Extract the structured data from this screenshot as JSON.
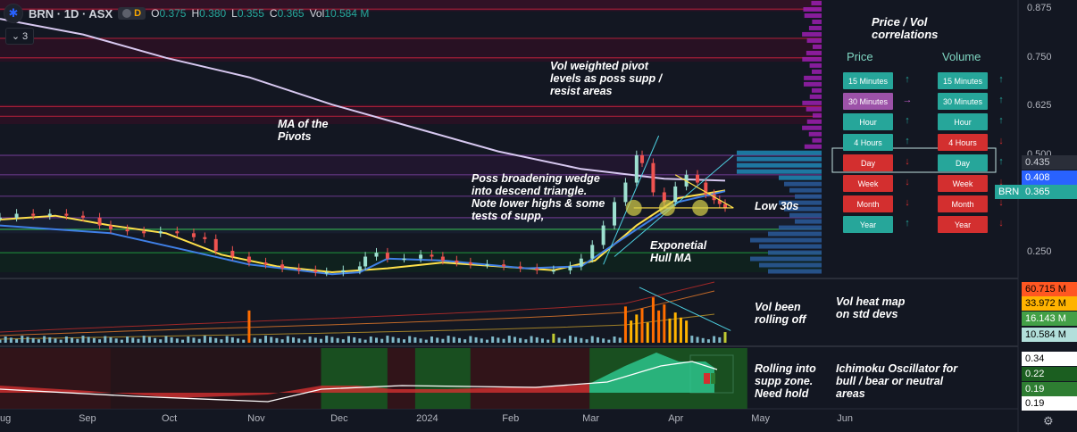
{
  "header": {
    "symbol": "BRN · 1D · ASX",
    "badge": "D",
    "open_key": "O",
    "open": "0.375",
    "high_key": "H",
    "high": "0.380",
    "low_key": "L",
    "low": "0.355",
    "close_key": "C",
    "close": "0.365",
    "vol_key": "Vol",
    "vol": "10.584 M",
    "collapse_count": "3"
  },
  "correlations": {
    "title_line1": "Price / Vol",
    "title_line2": "correlations",
    "price_header": "Price",
    "volume_header": "Volume",
    "rows": [
      {
        "label": "15 Minutes",
        "price_color": "#26a69a",
        "price_arrow": "↑",
        "price_arrow_color": "#26a69a",
        "vol_color": "#26a69a",
        "vol_arrow": "↑",
        "vol_arrow_color": "#26a69a"
      },
      {
        "label": "30 Minutes",
        "price_color": "#9c52a8",
        "price_arrow": "→",
        "price_arrow_color": "#c25cc9",
        "vol_color": "#26a69a",
        "vol_arrow": "↑",
        "vol_arrow_color": "#26a69a"
      },
      {
        "label": "Hour",
        "price_color": "#26a69a",
        "price_arrow": "↑",
        "price_arrow_color": "#26a69a",
        "vol_color": "#26a69a",
        "vol_arrow": "↑",
        "vol_arrow_color": "#26a69a"
      },
      {
        "label": "4 Hours",
        "price_color": "#26a69a",
        "price_arrow": "↑",
        "price_arrow_color": "#26a69a",
        "vol_color": "#d32f2f",
        "vol_arrow": "↓",
        "vol_arrow_color": "#d32f2f"
      },
      {
        "label": "Day",
        "price_color": "#d32f2f",
        "price_arrow": "↓",
        "price_arrow_color": "#d32f2f",
        "vol_color": "#26a69a",
        "vol_arrow": "↑",
        "vol_arrow_color": "#26a69a"
      },
      {
        "label": "Week",
        "price_color": "#d32f2f",
        "price_arrow": "↓",
        "price_arrow_color": "#d32f2f",
        "vol_color": "#d32f2f",
        "vol_arrow": "↓",
        "vol_arrow_color": "#d32f2f"
      },
      {
        "label": "Month",
        "price_color": "#d32f2f",
        "price_arrow": "↓",
        "price_arrow_color": "#d32f2f",
        "vol_color": "#d32f2f",
        "vol_arrow": "↓",
        "vol_arrow_color": "#d32f2f"
      },
      {
        "label": "Year",
        "price_color": "#26a69a",
        "price_arrow": "↑",
        "price_arrow_color": "#26a69a",
        "vol_color": "#d32f2f",
        "vol_arrow": "↓",
        "vol_arrow_color": "#d32f2f"
      }
    ]
  },
  "annotations": {
    "vol_weighted": "Vol weighted pivot levels as poss supp / resist areas",
    "ma_pivots": "MA of the Pivots",
    "broadening": "Poss broadening wedge into descend triangle. Note lower highs & some tests of supp,",
    "low30s": "Low 30s",
    "hull": "Exponetial Hull MA",
    "vol_rolling": "Vol been rolling off",
    "vol_heat": "Vol heat map on std devs",
    "rolling_supp": "Rolling into supp zone. Need hold",
    "ichimoku": "Ichimoku Oscillator for bull / bear or neutral areas"
  },
  "price_axis": {
    "ticks": [
      "0.875",
      "0.750",
      "0.625",
      "0.500",
      "0.250"
    ],
    "labels": [
      {
        "text": "0.435",
        "bg": "#2a2e39",
        "fg": "#d1d4dc"
      },
      {
        "text": "0.408",
        "bg": "#2962ff",
        "fg": "#ffffff"
      },
      {
        "text": "0.365",
        "bg": "#26a69a",
        "fg": "#ffffff"
      }
    ],
    "symbol_tag": "BRN"
  },
  "volume_axis": {
    "labels": [
      {
        "text": "60.715 M",
        "bg": "#ff5722",
        "fg": "#000000"
      },
      {
        "text": "33.972 M",
        "bg": "#ffb300",
        "fg": "#000000"
      },
      {
        "text": "16.143 M",
        "bg": "#43a047",
        "fg": "#ffffff"
      },
      {
        "text": "10.584 M",
        "bg": "#b2dfdb",
        "fg": "#000000"
      }
    ]
  },
  "oscillator_axis": {
    "labels": [
      {
        "text": "0.34",
        "bg": "#ffffff",
        "fg": "#000000"
      },
      {
        "text": "0.22",
        "bg": "#1b5e20",
        "fg": "#ffffff"
      },
      {
        "text": "0.19",
        "bg": "#2e7d32",
        "fg": "#ffffff"
      },
      {
        "text": "0.19",
        "bg": "#ffffff",
        "fg": "#000000"
      }
    ]
  },
  "time_axis": [
    "ug",
    "Sep",
    "Oct",
    "Nov",
    "Dec",
    "2024",
    "Feb",
    "Mar",
    "Apr",
    "May",
    "Jun"
  ],
  "chart_data": {
    "type": "candlestick",
    "title": "BRN · 1D · ASX",
    "ylim": [
      0.15,
      0.9
    ],
    "yticks": [
      0.25,
      0.5,
      0.625,
      0.75,
      0.875
    ],
    "x_range_days": [
      0,
      310
    ],
    "month_days": [
      0,
      31,
      61,
      92,
      122,
      153,
      184,
      213,
      244,
      274,
      305
    ],
    "price": [
      [
        0,
        0.34
      ],
      [
        6,
        0.35
      ],
      [
        12,
        0.345
      ],
      [
        18,
        0.35
      ],
      [
        24,
        0.345
      ],
      [
        30,
        0.34
      ],
      [
        36,
        0.32
      ],
      [
        40,
        0.31
      ],
      [
        46,
        0.305
      ],
      [
        52,
        0.3
      ],
      [
        58,
        0.305
      ],
      [
        64,
        0.3
      ],
      [
        70,
        0.29
      ],
      [
        74,
        0.285
      ],
      [
        78,
        0.255
      ],
      [
        84,
        0.24
      ],
      [
        90,
        0.225
      ],
      [
        96,
        0.22
      ],
      [
        102,
        0.21
      ],
      [
        108,
        0.205
      ],
      [
        114,
        0.2
      ],
      [
        118,
        0.2
      ],
      [
        124,
        0.205
      ],
      [
        130,
        0.215
      ],
      [
        132,
        0.24
      ],
      [
        136,
        0.25
      ],
      [
        140,
        0.235
      ],
      [
        146,
        0.235
      ],
      [
        152,
        0.245
      ],
      [
        156,
        0.24
      ],
      [
        160,
        0.23
      ],
      [
        165,
        0.225
      ],
      [
        170,
        0.22
      ],
      [
        176,
        0.22
      ],
      [
        182,
        0.215
      ],
      [
        188,
        0.21
      ],
      [
        194,
        0.205
      ],
      [
        200,
        0.205
      ],
      [
        206,
        0.215
      ],
      [
        210,
        0.235
      ],
      [
        214,
        0.27
      ],
      [
        218,
        0.32
      ],
      [
        222,
        0.38
      ],
      [
        226,
        0.43
      ],
      [
        230,
        0.5
      ],
      [
        232,
        0.48
      ],
      [
        236,
        0.405
      ],
      [
        240,
        0.38
      ],
      [
        244,
        0.42
      ],
      [
        248,
        0.45
      ],
      [
        252,
        0.43
      ],
      [
        255,
        0.4
      ],
      [
        258,
        0.385
      ],
      [
        260,
        0.375
      ],
      [
        262,
        0.365
      ]
    ],
    "pivot_ma": [
      [
        0,
        0.85
      ],
      [
        30,
        0.81
      ],
      [
        60,
        0.75
      ],
      [
        90,
        0.7
      ],
      [
        120,
        0.63
      ],
      [
        150,
        0.57
      ],
      [
        180,
        0.51
      ],
      [
        210,
        0.465
      ],
      [
        240,
        0.44
      ],
      [
        262,
        0.435
      ]
    ],
    "hull_ma": [
      [
        0,
        0.335
      ],
      [
        20,
        0.345
      ],
      [
        40,
        0.32
      ],
      [
        60,
        0.3
      ],
      [
        80,
        0.245
      ],
      [
        100,
        0.215
      ],
      [
        120,
        0.2
      ],
      [
        140,
        0.21
      ],
      [
        160,
        0.225
      ],
      [
        180,
        0.215
      ],
      [
        200,
        0.205
      ],
      [
        215,
        0.23
      ],
      [
        230,
        0.32
      ],
      [
        245,
        0.39
      ],
      [
        262,
        0.41
      ]
    ],
    "blue_ma": [
      [
        0,
        0.32
      ],
      [
        40,
        0.3
      ],
      [
        90,
        0.22
      ],
      [
        120,
        0.195
      ],
      [
        130,
        0.2
      ],
      [
        140,
        0.235
      ],
      [
        160,
        0.23
      ],
      [
        190,
        0.21
      ],
      [
        210,
        0.215
      ],
      [
        230,
        0.31
      ],
      [
        245,
        0.38
      ],
      [
        262,
        0.408
      ]
    ],
    "pivot_levels": [
      0.875,
      0.8,
      0.75,
      0.625,
      0.6,
      0.5,
      0.45,
      0.395,
      0.34,
      0.31,
      0.25
    ],
    "volume_profile_peak_price": 0.485,
    "volume_millions": {
      "days": [
        90,
        135,
        200,
        229,
        233,
        236,
        240,
        246,
        262
      ],
      "values": [
        32,
        18,
        9,
        60.715,
        52,
        45,
        38,
        25,
        10.584
      ]
    },
    "volume_bands_millions": [
      60.715,
      33.972,
      16.143,
      10.584
    ],
    "ichimoku_oscillator": {
      "last_values": [
        0.34,
        0.22,
        0.19,
        0.19
      ]
    }
  }
}
